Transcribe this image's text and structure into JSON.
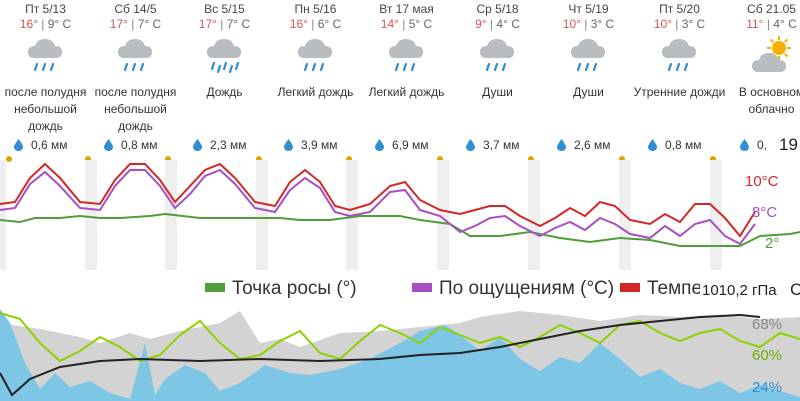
{
  "days": [
    {
      "name": "Пт 5/13",
      "hi": "16°",
      "lo": "9° C",
      "desc": [
        "после полудня",
        "небольшой",
        "дождь"
      ],
      "precip": "0,6 мм",
      "icon": "rain-icon"
    },
    {
      "name": "Сб 14/5",
      "hi": "17°",
      "lo": "7° C",
      "desc": [
        "после полудня",
        "небольшой",
        "дождь"
      ],
      "precip": "0,8 мм",
      "icon": "rain-icon"
    },
    {
      "name": "Вс 5/15",
      "hi": "17°",
      "lo": "7° C",
      "desc": [
        "Дождь"
      ],
      "precip": "2,3 мм",
      "icon": "heavy-rain-icon"
    },
    {
      "name": "Пн 5/16",
      "hi": "16°",
      "lo": "6° C",
      "desc": [
        "Легкий дождь"
      ],
      "precip": "3,9 мм",
      "icon": "rain-icon"
    },
    {
      "name": "Вт 17 мая",
      "hi": "14°",
      "lo": "5° C",
      "desc": [
        "Легкий дождь"
      ],
      "precip": "6,9 мм",
      "icon": "rain-icon"
    },
    {
      "name": "Ср 5/18",
      "hi": "9°",
      "lo": "4° C",
      "desc": [
        "Души"
      ],
      "precip": "3,7 мм",
      "icon": "rain-icon"
    },
    {
      "name": "Чт 5/19",
      "hi": "10°",
      "lo": "3° C",
      "desc": [
        "Души"
      ],
      "precip": "2,6 мм",
      "icon": "rain-icon"
    },
    {
      "name": "Пт 5/20",
      "hi": "10°",
      "lo": "3° C",
      "desc": [
        "Утренние дожди"
      ],
      "precip": "0,8 мм",
      "icon": "rain-icon"
    },
    {
      "name": "Сб 21.05",
      "hi": "11°",
      "lo": "4° C",
      "desc": [
        "В основном",
        "облачно"
      ],
      "precip": "0,",
      "icon": "partly-cloudy-icon"
    }
  ],
  "temp_scale": {
    "hi": "10°C",
    "mid": "8°C",
    "lo": "2°",
    "cut": "19"
  },
  "legend": {
    "dew": "Точка росы (°)",
    "feels": "По ощущениям (°C)",
    "temp": "Темпе"
  },
  "pressure": {
    "value": "1010,2 гПа",
    "cut": "C"
  },
  "humidity": {
    "hi": "68%",
    "mid": "60%",
    "lo": "24%"
  },
  "colors": {
    "temp": "#d32626",
    "feels": "#a84ec3",
    "dew": "#4f9e3a",
    "humidity": "#8fd000",
    "precip_fill": "#7ec6e6",
    "rain_icon": "#2f8fd0",
    "sun": "#f4b000"
  }
}
